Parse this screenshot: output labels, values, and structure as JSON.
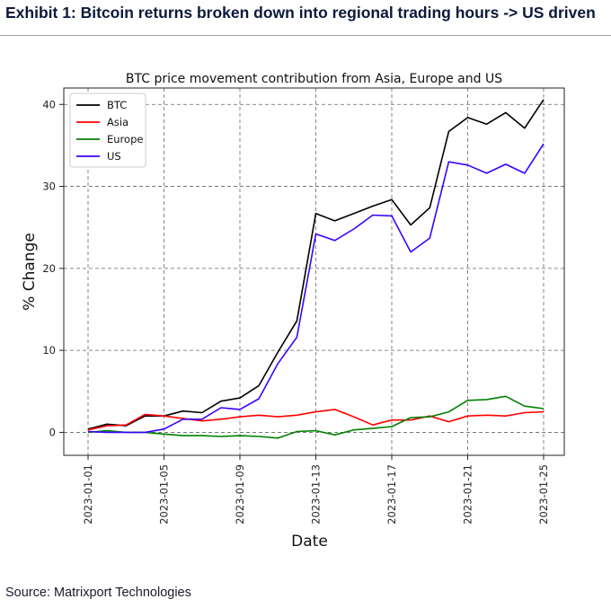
{
  "header": {
    "title": "Exhibit 1: Bitcoin returns broken down into regional trading hours -> US driven"
  },
  "footer": {
    "source": "Source: Matrixport Technologies"
  },
  "chart_data": {
    "type": "line",
    "title": "BTC price movement contribution from Asia, Europe and US",
    "xlabel": "Date",
    "ylabel": "% Change",
    "grid": true,
    "legend_position": "top-left",
    "x": [
      "2023-01-01",
      "2023-01-02",
      "2023-01-03",
      "2023-01-04",
      "2023-01-05",
      "2023-01-06",
      "2023-01-07",
      "2023-01-08",
      "2023-01-09",
      "2023-01-10",
      "2023-01-11",
      "2023-01-12",
      "2023-01-13",
      "2023-01-14",
      "2023-01-15",
      "2023-01-16",
      "2023-01-17",
      "2023-01-18",
      "2023-01-19",
      "2023-01-20",
      "2023-01-21",
      "2023-01-22",
      "2023-01-23",
      "2023-01-24",
      "2023-01-25"
    ],
    "xticks": [
      "2023-01-01",
      "2023-01-05",
      "2023-01-09",
      "2023-01-13",
      "2023-01-17",
      "2023-01-21",
      "2023-01-25"
    ],
    "yticks": [
      0,
      10,
      20,
      30,
      40
    ],
    "ylim": [
      -2.8,
      42
    ],
    "series": [
      {
        "name": "BTC",
        "color": "#000000",
        "values": [
          0.4,
          1.0,
          0.8,
          2.0,
          2.0,
          2.6,
          2.4,
          3.8,
          4.2,
          5.7,
          9.8,
          13.6,
          26.7,
          25.8,
          26.7,
          27.6,
          28.4,
          25.3,
          27.4,
          36.7,
          38.4,
          37.6,
          39.0,
          37.1,
          40.6
        ]
      },
      {
        "name": "Asia",
        "color": "#ff0000",
        "values": [
          0.3,
          0.8,
          0.9,
          2.2,
          2.0,
          1.7,
          1.4,
          1.6,
          1.9,
          2.1,
          1.9,
          2.1,
          2.5,
          2.8,
          1.9,
          0.9,
          1.5,
          1.5,
          2.0,
          1.3,
          2.0,
          2.1,
          2.0,
          2.4,
          2.5
        ]
      },
      {
        "name": "Europe",
        "color": "#008000",
        "values": [
          0.0,
          0.2,
          0.0,
          0.0,
          -0.2,
          -0.4,
          -0.4,
          -0.5,
          -0.4,
          -0.5,
          -0.7,
          0.1,
          0.2,
          -0.3,
          0.3,
          0.5,
          0.7,
          1.8,
          1.9,
          2.5,
          3.9,
          4.0,
          4.4,
          3.2,
          2.9
        ]
      },
      {
        "name": "US",
        "color": "#3a00ff",
        "values": [
          0.1,
          0.0,
          0.0,
          0.0,
          0.4,
          1.6,
          1.6,
          3.0,
          2.8,
          4.1,
          8.4,
          11.6,
          24.2,
          23.4,
          24.8,
          26.5,
          26.4,
          22.0,
          23.7,
          33.0,
          32.6,
          31.6,
          32.7,
          31.6,
          35.2
        ]
      }
    ]
  }
}
